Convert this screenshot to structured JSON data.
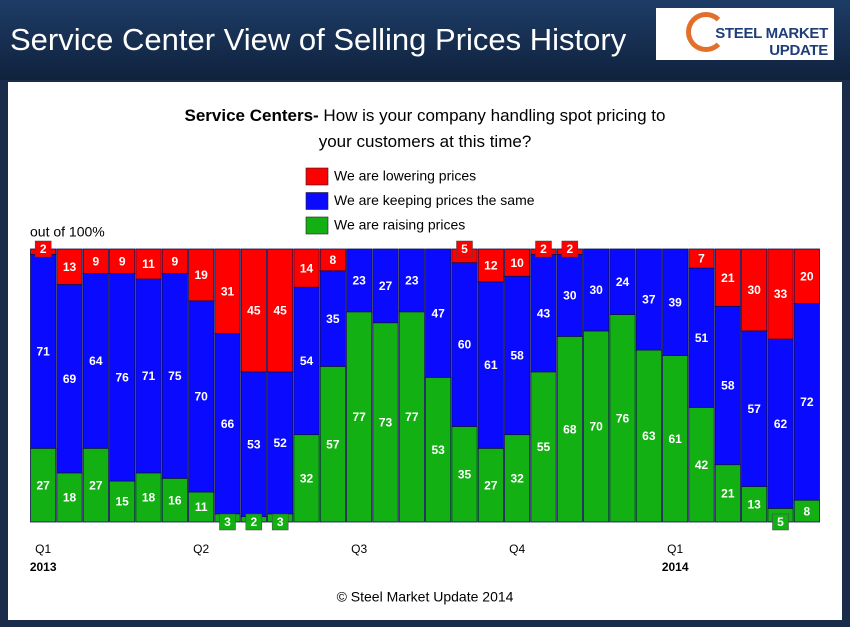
{
  "header": {
    "title": "Service Center View of Selling Prices History",
    "logo": "STEEL MARKET UPDATE"
  },
  "chart_data": {
    "type": "stacked-bar",
    "title_lead": "Service Centers-",
    "title": "How is your company handling spot pricing to your customers at this time?",
    "y_label": "out of 100%",
    "categories": [
      "Q1",
      null,
      null,
      null,
      null,
      null,
      "Q2",
      null,
      null,
      null,
      null,
      null,
      "Q3",
      null,
      null,
      null,
      null,
      null,
      "Q4",
      null,
      null,
      null,
      null,
      null,
      "Q1",
      null,
      null,
      null,
      null,
      null
    ],
    "category_years": [
      "2013",
      null,
      null,
      null,
      null,
      null,
      null,
      null,
      null,
      null,
      null,
      null,
      null,
      null,
      null,
      null,
      null,
      null,
      null,
      null,
      null,
      null,
      null,
      null,
      "2014",
      null,
      null,
      null,
      null,
      null
    ],
    "ylim": [
      0,
      100
    ],
    "series": [
      {
        "name": "We are lowering prices",
        "color": "#ff0000",
        "values": [
          2,
          13,
          9,
          9,
          11,
          9,
          19,
          31,
          45,
          45,
          14,
          8,
          0,
          0,
          0,
          0,
          5,
          12,
          10,
          2,
          2,
          0,
          0,
          0,
          0,
          7,
          21,
          30,
          33,
          20
        ]
      },
      {
        "name": "We are keeping prices the same",
        "color": "#0a0aff",
        "values": [
          71,
          69,
          64,
          76,
          71,
          75,
          70,
          66,
          53,
          52,
          54,
          35,
          23,
          27,
          23,
          47,
          60,
          61,
          58,
          43,
          30,
          30,
          24,
          37,
          39,
          51,
          58,
          57,
          62,
          72
        ]
      },
      {
        "name": "We are raising prices",
        "color": "#12b012",
        "values": [
          27,
          18,
          27,
          15,
          18,
          16,
          11,
          3,
          2,
          3,
          32,
          57,
          77,
          73,
          77,
          53,
          35,
          27,
          32,
          55,
          68,
          70,
          76,
          63,
          61,
          42,
          21,
          13,
          5,
          8
        ]
      }
    ]
  },
  "footer": "© Steel Market Update 2014"
}
